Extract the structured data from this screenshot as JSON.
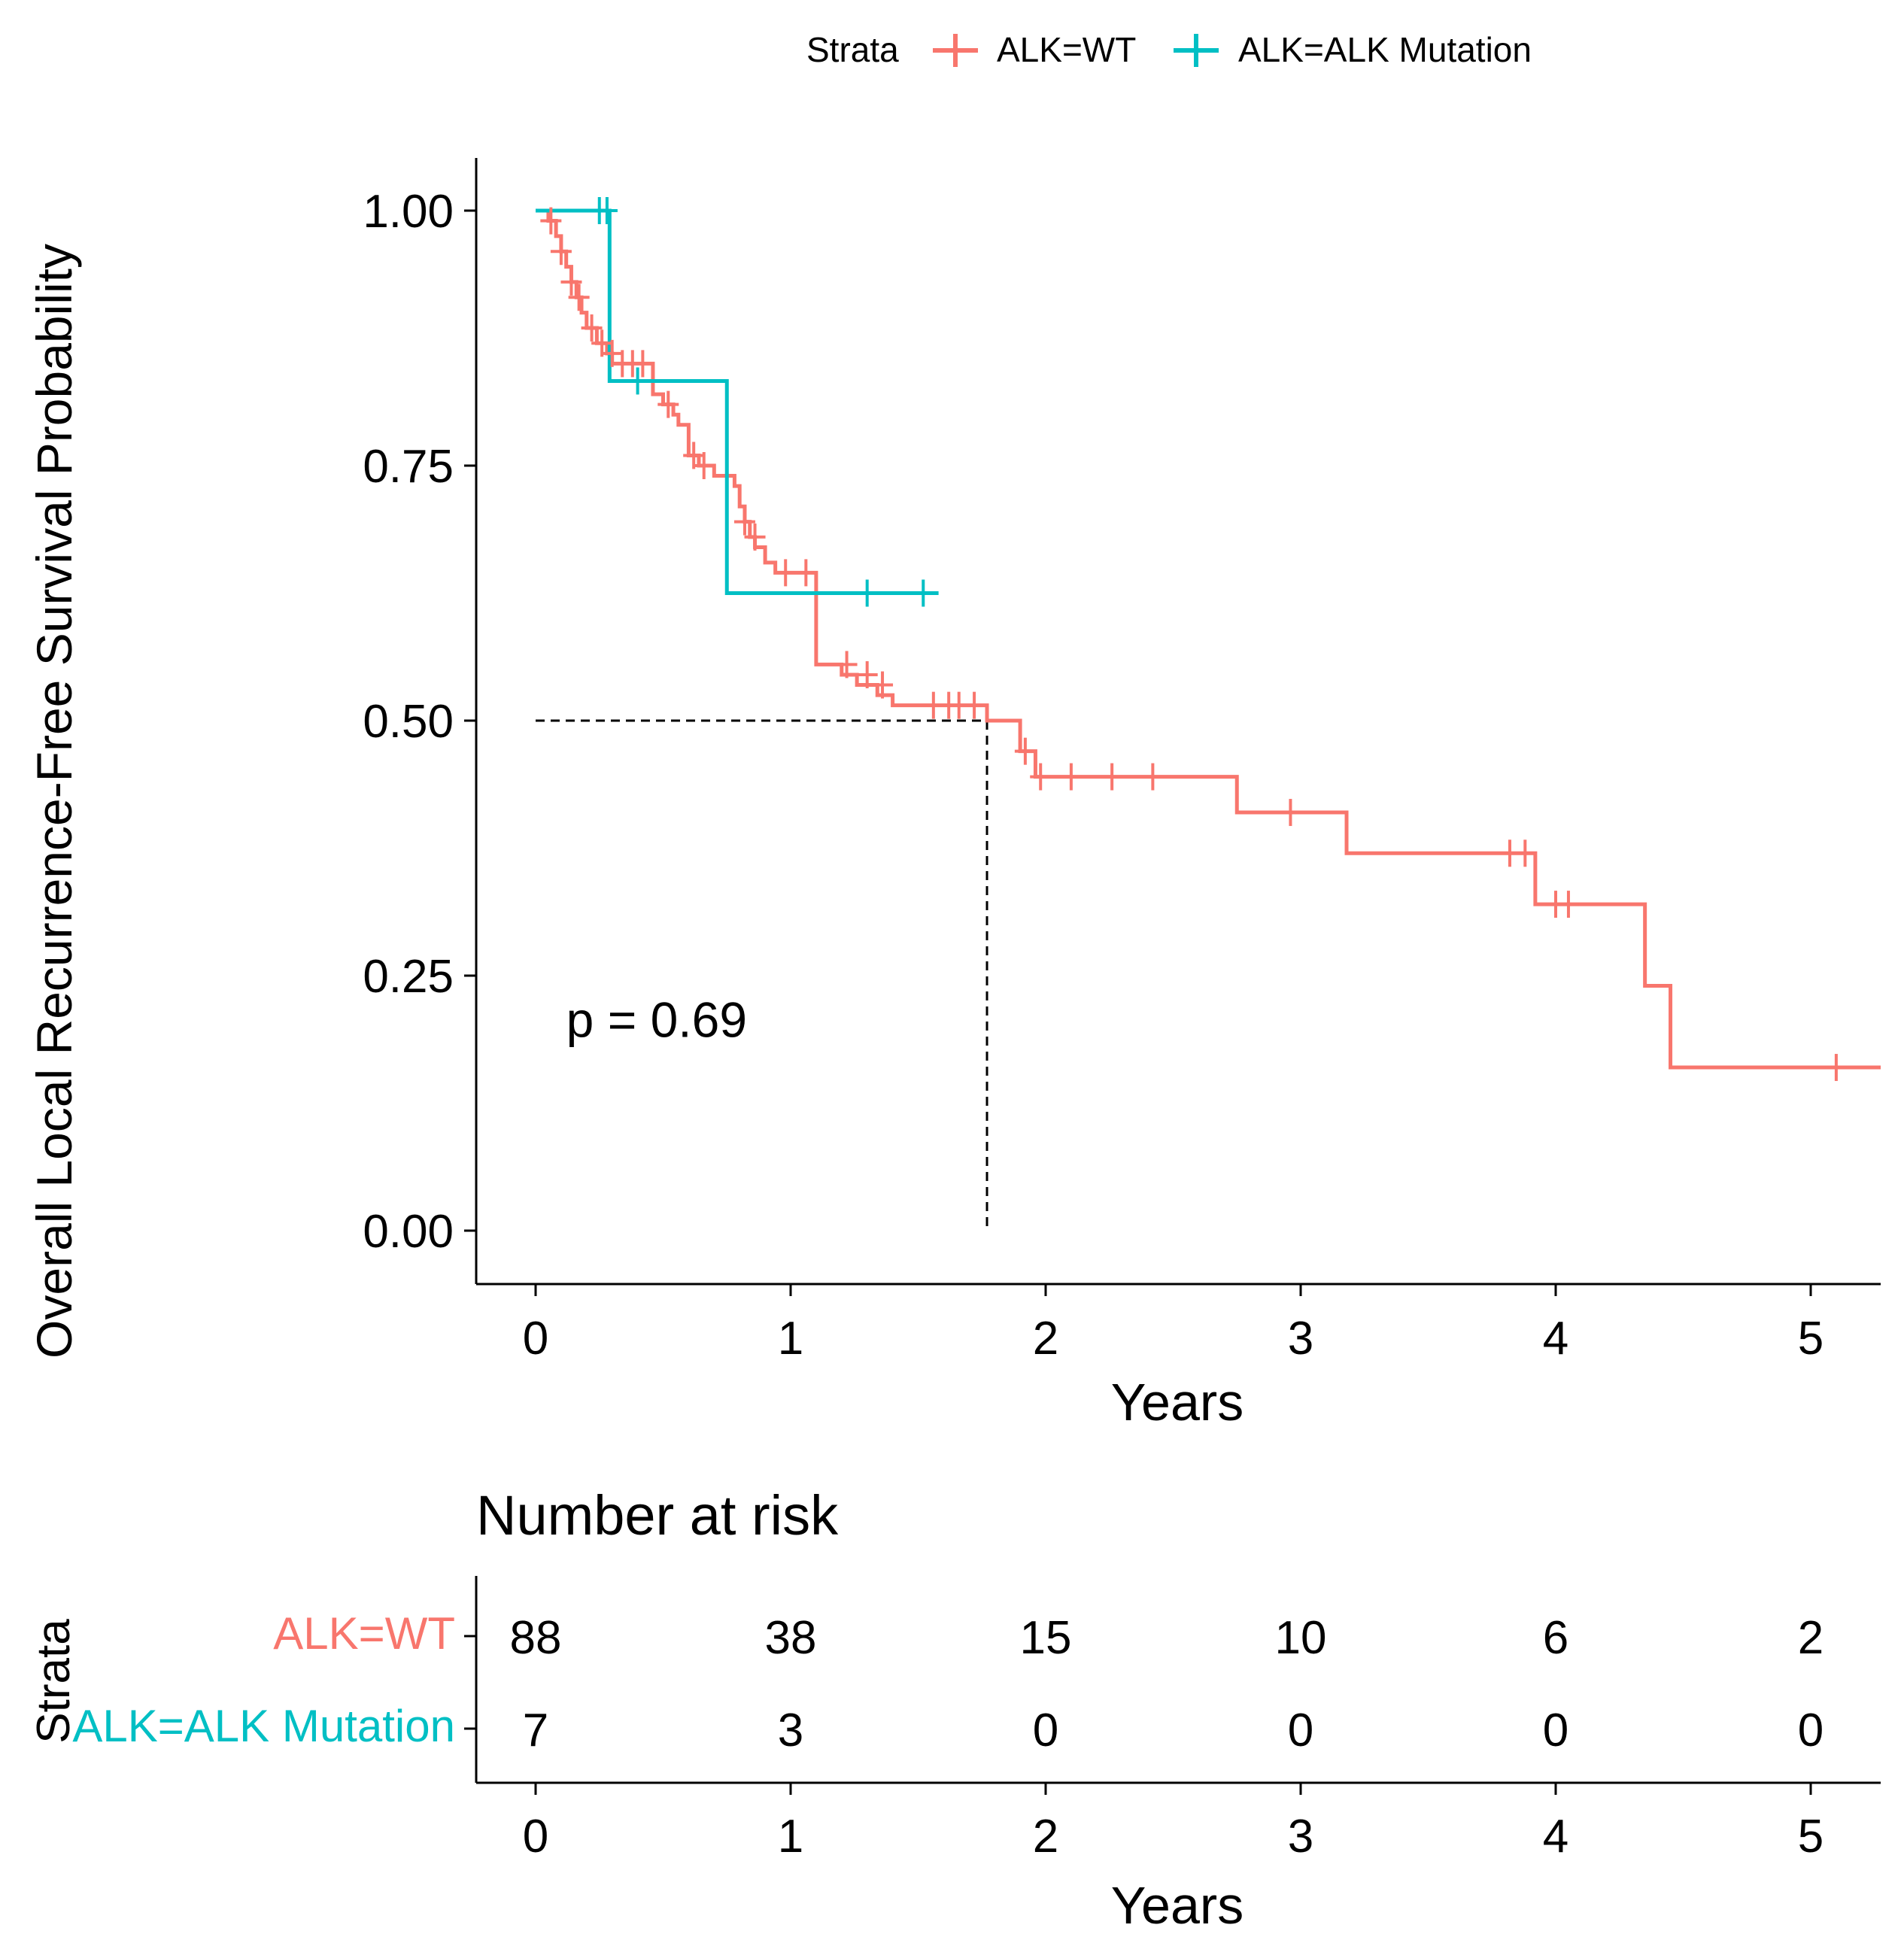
{
  "chart_data": {
    "type": "line",
    "subtype": "kaplan-meier",
    "ylabel": "Overall Local Recurrence-Free Survival Probability",
    "xlabel": "Years",
    "xlim": [
      -0.23,
      5.25
    ],
    "ylim": [
      -0.05,
      1.05
    ],
    "xticks": [
      0,
      1,
      2,
      3,
      4,
      5
    ],
    "yticks": [
      0.0,
      0.25,
      0.5,
      0.75,
      1.0
    ],
    "ytick_labels": [
      "0.00",
      "0.25",
      "0.50",
      "0.75",
      "1.00"
    ],
    "legend": {
      "title": "Strata",
      "position": "top"
    },
    "pvalue_text": "p = 0.69",
    "pvalue_pos": {
      "x": 0.12,
      "y": 0.19
    },
    "median_line": {
      "y": 0.5,
      "x": 1.77
    },
    "series": [
      {
        "name": "ALK=WT",
        "color": "#F8766D",
        "steps": [
          [
            0,
            1.0
          ],
          [
            0.05,
            0.99
          ],
          [
            0.08,
            0.975
          ],
          [
            0.1,
            0.96
          ],
          [
            0.12,
            0.945
          ],
          [
            0.14,
            0.93
          ],
          [
            0.16,
            0.915
          ],
          [
            0.18,
            0.9
          ],
          [
            0.2,
            0.885
          ],
          [
            0.24,
            0.87
          ],
          [
            0.28,
            0.86
          ],
          [
            0.3,
            0.85
          ],
          [
            0.4,
            0.85
          ],
          [
            0.46,
            0.82
          ],
          [
            0.5,
            0.81
          ],
          [
            0.54,
            0.8
          ],
          [
            0.56,
            0.79
          ],
          [
            0.6,
            0.76
          ],
          [
            0.64,
            0.75
          ],
          [
            0.7,
            0.74
          ],
          [
            0.78,
            0.73
          ],
          [
            0.8,
            0.71
          ],
          [
            0.82,
            0.695
          ],
          [
            0.84,
            0.68
          ],
          [
            0.86,
            0.67
          ],
          [
            0.9,
            0.655
          ],
          [
            0.94,
            0.645
          ],
          [
            1.1,
            0.555
          ],
          [
            1.2,
            0.545
          ],
          [
            1.26,
            0.535
          ],
          [
            1.34,
            0.525
          ],
          [
            1.4,
            0.515
          ],
          [
            1.77,
            0.5
          ],
          [
            1.9,
            0.47
          ],
          [
            1.96,
            0.445
          ],
          [
            2.75,
            0.41
          ],
          [
            3.18,
            0.37
          ],
          [
            3.92,
            0.32
          ],
          [
            4.35,
            0.24
          ],
          [
            4.45,
            0.16
          ]
        ],
        "end_x": 5.3,
        "censors": [
          [
            0.06,
            0.99
          ],
          [
            0.1,
            0.96
          ],
          [
            0.14,
            0.93
          ],
          [
            0.17,
            0.915
          ],
          [
            0.22,
            0.885
          ],
          [
            0.26,
            0.87
          ],
          [
            0.3,
            0.86
          ],
          [
            0.34,
            0.85
          ],
          [
            0.38,
            0.85
          ],
          [
            0.42,
            0.85
          ],
          [
            0.52,
            0.81
          ],
          [
            0.62,
            0.76
          ],
          [
            0.66,
            0.75
          ],
          [
            0.82,
            0.695
          ],
          [
            0.86,
            0.68
          ],
          [
            0.98,
            0.645
          ],
          [
            1.06,
            0.645
          ],
          [
            1.22,
            0.555
          ],
          [
            1.3,
            0.545
          ],
          [
            1.36,
            0.535
          ],
          [
            1.56,
            0.515
          ],
          [
            1.62,
            0.515
          ],
          [
            1.66,
            0.515
          ],
          [
            1.72,
            0.515
          ],
          [
            1.92,
            0.47
          ],
          [
            1.98,
            0.445
          ],
          [
            2.1,
            0.445
          ],
          [
            2.26,
            0.445
          ],
          [
            2.42,
            0.445
          ],
          [
            2.96,
            0.41
          ],
          [
            3.82,
            0.37
          ],
          [
            3.88,
            0.37
          ],
          [
            4.0,
            0.32
          ],
          [
            4.05,
            0.32
          ],
          [
            5.1,
            0.16
          ]
        ],
        "at_risk": [
          88,
          38,
          15,
          10,
          6,
          2
        ]
      },
      {
        "name": "ALK=ALK Mutation",
        "color": "#00BFC4",
        "steps": [
          [
            0,
            1.0
          ],
          [
            0.29,
            0.833
          ],
          [
            0.75,
            0.625
          ]
        ],
        "end_x": 1.58,
        "censors": [
          [
            0.25,
            1.0
          ],
          [
            0.28,
            1.0
          ],
          [
            0.4,
            0.833
          ],
          [
            1.3,
            0.625
          ],
          [
            1.52,
            0.625
          ]
        ],
        "at_risk": [
          7,
          3,
          0,
          0,
          0,
          0
        ]
      }
    ],
    "risk_table": {
      "title": "Number at risk",
      "ylabel": "Strata",
      "xlabel": "Years",
      "times": [
        0,
        1,
        2,
        3,
        4,
        5
      ]
    }
  }
}
